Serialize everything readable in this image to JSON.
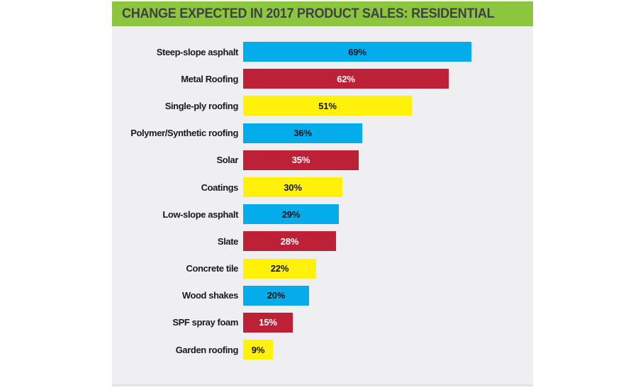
{
  "title": "CHANGE EXPECTED IN 2017 PRODUCT SALES: RESIDENTIAL",
  "chart_data": {
    "type": "bar",
    "orientation": "horizontal",
    "title": "CHANGE EXPECTED IN 2017 PRODUCT SALES: RESIDENTIAL",
    "categories": [
      "Steep-slope asphalt",
      "Metal Roofing",
      "Single-ply roofing",
      "Polymer/Synthetic roofing",
      "Solar",
      "Coatings",
      "Low-slope asphalt",
      "Slate",
      "Concrete tile",
      "Wood shakes",
      "SPF spray foam",
      "Garden roofing"
    ],
    "values": [
      69,
      62,
      51,
      36,
      35,
      30,
      29,
      28,
      22,
      20,
      15,
      9
    ],
    "value_labels": [
      "69%",
      "62%",
      "51%",
      "36%",
      "35%",
      "30%",
      "29%",
      "28%",
      "22%",
      "20%",
      "15%",
      "9%"
    ],
    "unit": "%",
    "xlim": [
      0,
      87
    ],
    "grid": false,
    "legend": "none",
    "value_label_position": "centered-inside-bar",
    "bar_color_cycle": [
      "#04ACEC",
      "#BD2137",
      "#FFF10A"
    ],
    "value_text_color_cycle": [
      "#101418",
      "#FFFFFF",
      "#101418"
    ]
  },
  "colors": {
    "header_bg": "#8CC63F",
    "header_text": "#414042",
    "panel_bg": "#EFEFF1",
    "page_bg": "#FFFFFF",
    "category_text": "#1A1A1A"
  }
}
